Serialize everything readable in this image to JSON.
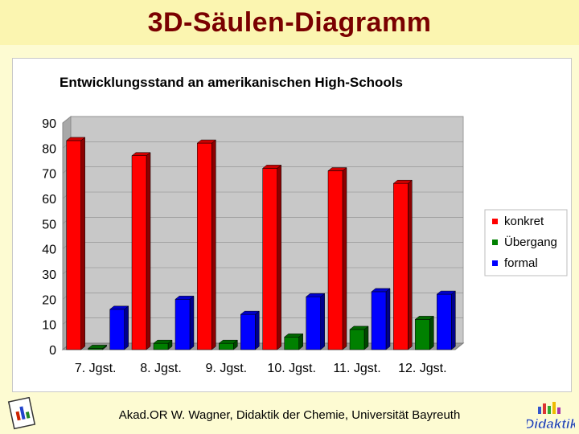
{
  "slide": {
    "title": "3D-Säulen-Diagramm",
    "footer": "Akad.OR W. Wagner, Didaktik der Chemie, Universität Bayreuth"
  },
  "chart_data": {
    "type": "bar",
    "title": "Entwicklungsstand an amerikanischen High-Schools",
    "xlabel": "",
    "ylabel": "",
    "categories": [
      "7. Jgst.",
      "8. Jgst.",
      "9. Jgst.",
      "10. Jgst.",
      "11. Jgst.",
      "12. Jgst."
    ],
    "series": [
      {
        "name": "konkret",
        "color": "#ff0000",
        "values": [
          83,
          77,
          82,
          72,
          71,
          66
        ]
      },
      {
        "name": "Übergang",
        "color": "#008000",
        "values": [
          0.5,
          2.5,
          2.5,
          5,
          8,
          12
        ]
      },
      {
        "name": "formal",
        "color": "#0000ff",
        "values": [
          16,
          20,
          14,
          21,
          23,
          22
        ]
      }
    ],
    "ylim": [
      0,
      90
    ],
    "yticks": [
      0,
      10,
      20,
      30,
      40,
      50,
      60,
      70,
      80,
      90
    ],
    "grid": true,
    "style": "3d",
    "legend_position": "right"
  }
}
